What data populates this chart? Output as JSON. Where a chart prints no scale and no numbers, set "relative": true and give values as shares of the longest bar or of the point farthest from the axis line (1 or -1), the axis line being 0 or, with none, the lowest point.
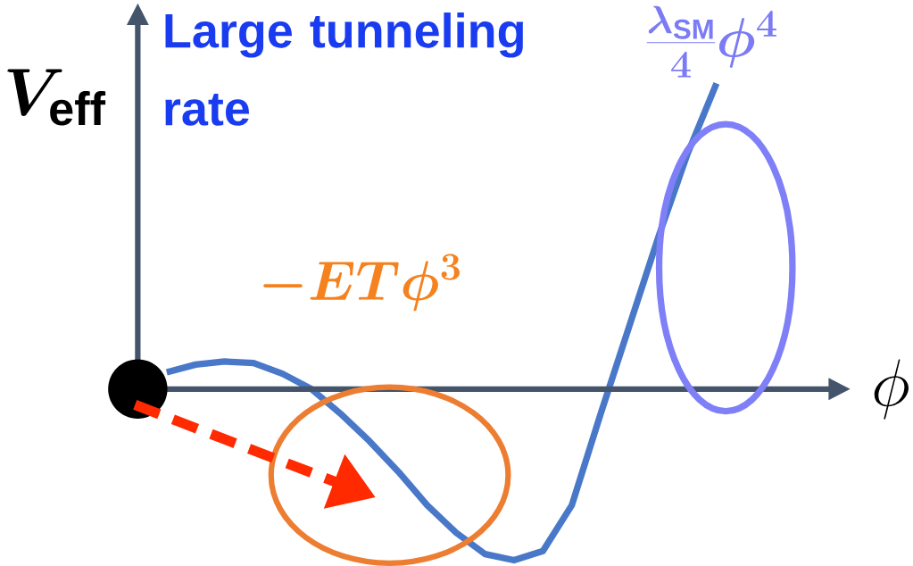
{
  "chart_data": {
    "type": "line",
    "relative": true,
    "ylabel": "V_{\\mathrm{eff}}",
    "categories": [
      null,
      null,
      null,
      null,
      null,
      null,
      null,
      null,
      null,
      null,
      null,
      null,
      null,
      null,
      null,
      null,
      null,
      null,
      null,
      null,
      null
    ],
    "values": [
      null,
      0.055,
      0.08,
      0.09,
      0.085,
      0.05,
      0,
      -0.08,
      -0.17,
      -0.27,
      -0.38,
      -0.47,
      -0.54,
      -0.56,
      -0.53,
      -0.38,
      -0.08,
      0.21,
      0.5,
      0.77,
      1
    ],
    "color": "#4a78c8",
    "annotations": [
      "Large tunneling rate",
      "-ET\\phi^{3}",
      "\\frac{\\lambda_{\\rm SM}}{4}\\phi^{4}",
      "\\phi"
    ]
  }
}
